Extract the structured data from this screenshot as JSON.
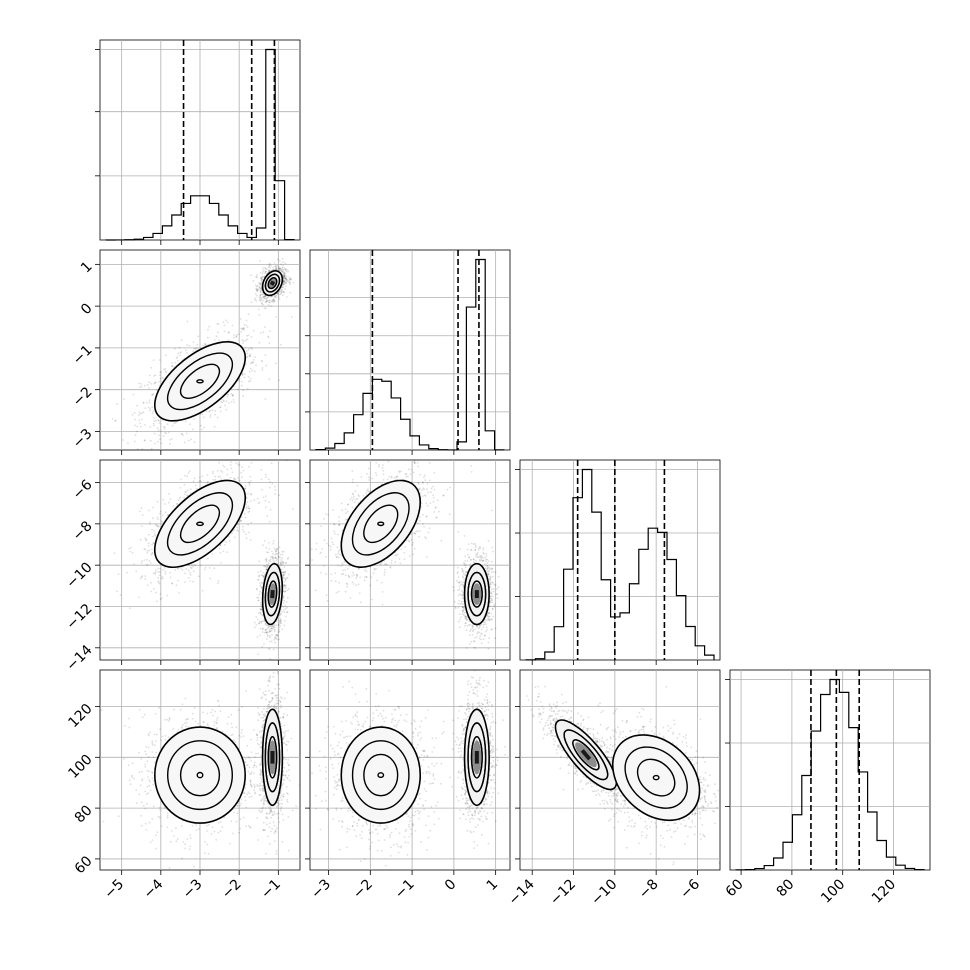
{
  "chart_data": {
    "type": "corner",
    "grid": true,
    "parameters": [
      {
        "range": [
          -5.4,
          -0.6
        ],
        "ticks": [
          -5,
          -4,
          -3,
          -2,
          -1
        ],
        "quantiles": [
          -3.42,
          -1.68,
          -1.1
        ],
        "hist_peak": 0.95,
        "hist_ticks": [
          0.32,
          0.64,
          0.95
        ],
        "modes": [
          {
            "mean": -3.0,
            "sd": 0.55,
            "weight": 0.5
          },
          {
            "mean": -1.15,
            "sd": 0.12,
            "weight": 0.5
          }
        ]
      },
      {
        "range": [
          -3.3,
          1.2
        ],
        "ticks": [
          -3,
          -2,
          -1,
          0,
          1
        ],
        "quantiles": [
          -1.95,
          0.1,
          0.6
        ],
        "hist_peak": 0.8,
        "hist_ticks": [
          0.16,
          0.32,
          0.48,
          0.64
        ],
        "modes": [
          {
            "mean": -1.75,
            "sd": 0.45,
            "weight": 0.5
          },
          {
            "mean": 0.55,
            "sd": 0.14,
            "weight": 0.5
          }
        ]
      },
      {
        "range": [
          -14.3,
          -5.2
        ],
        "ticks": [
          -14,
          -12,
          -10,
          -8,
          -6
        ],
        "quantiles": [
          -11.8,
          -10.0,
          -7.6
        ],
        "hist_peak": 0.6,
        "hist_ticks": [
          0.2,
          0.4,
          0.6
        ],
        "modes": [
          {
            "mean": -11.4,
            "sd": 0.7,
            "weight": 0.5
          },
          {
            "mean": -8.0,
            "sd": 1.0,
            "weight": 0.5
          }
        ]
      },
      {
        "range": [
          58,
          132
        ],
        "ticks": [
          60,
          80,
          100,
          120
        ],
        "quantiles": [
          87.5,
          97.5,
          106.5
        ],
        "hist_peak": 0.27,
        "hist_ticks": [
          0.09,
          0.18,
          0.27
        ],
        "modes": [
          {
            "mean": 97,
            "sd": 9.5,
            "weight": 1.0
          }
        ]
      }
    ],
    "pairs": [
      {
        "row": 1,
        "col": 0,
        "clusters": [
          {
            "mx": -3.0,
            "my": -1.8,
            "sx": 0.55,
            "sy": 0.45,
            "rho": 0.6,
            "shade": 0.0
          },
          {
            "mx": -1.15,
            "my": 0.55,
            "sx": 0.12,
            "sy": 0.14,
            "rho": 0.3,
            "shade": 0.9
          }
        ]
      },
      {
        "row": 2,
        "col": 0,
        "clusters": [
          {
            "mx": -3.0,
            "my": -8.0,
            "sx": 0.55,
            "sy": 1.0,
            "rho": 0.6,
            "shade": 0.15
          },
          {
            "mx": -1.15,
            "my": -11.4,
            "sx": 0.12,
            "sy": 0.7,
            "rho": 0.2,
            "shade": 0.9
          }
        ]
      },
      {
        "row": 2,
        "col": 1,
        "clusters": [
          {
            "mx": -1.75,
            "my": -8.0,
            "sx": 0.45,
            "sy": 1.0,
            "rho": 0.5,
            "shade": 0.15
          },
          {
            "mx": 0.55,
            "my": -11.4,
            "sx": 0.14,
            "sy": 0.7,
            "rho": 0.0,
            "shade": 0.9
          }
        ]
      },
      {
        "row": 3,
        "col": 0,
        "clusters": [
          {
            "mx": -3.0,
            "my": 93,
            "sx": 0.55,
            "sy": 9.0,
            "rho": 0.0,
            "shade": 0.05
          },
          {
            "mx": -1.15,
            "my": 100,
            "sx": 0.12,
            "sy": 9.0,
            "rho": 0.0,
            "shade": 0.85
          }
        ]
      },
      {
        "row": 3,
        "col": 1,
        "clusters": [
          {
            "mx": -1.75,
            "my": 93,
            "sx": 0.45,
            "sy": 9.0,
            "rho": 0.0,
            "shade": 0.05
          },
          {
            "mx": 0.55,
            "my": 100,
            "sx": 0.14,
            "sy": 9.0,
            "rho": 0.0,
            "shade": 0.85
          }
        ]
      },
      {
        "row": 3,
        "col": 2,
        "clusters": [
          {
            "mx": -11.4,
            "my": 101,
            "sx": 0.7,
            "sy": 6.5,
            "rho": -0.8,
            "shade": 0.85
          },
          {
            "mx": -8.0,
            "my": 92,
            "sx": 1.0,
            "sy": 8.0,
            "rho": -0.3,
            "shade": 0.1
          }
        ]
      }
    ]
  }
}
